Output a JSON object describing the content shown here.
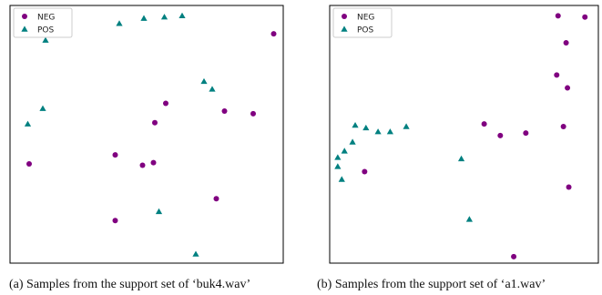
{
  "colors": {
    "neg": "#800080",
    "pos": "#008080"
  },
  "chart_data": [
    {
      "type": "scatter",
      "title": "",
      "xlabel": "",
      "ylabel": "",
      "xlim": [
        0,
        100
      ],
      "ylim": [
        0,
        100
      ],
      "grid": false,
      "legend": "top-left",
      "series": [
        {
          "name": "NEG",
          "marker": "circle",
          "points": [
            [
              96.5,
              89
            ],
            [
              57,
              62
            ],
            [
              78.5,
              59
            ],
            [
              89,
              58
            ],
            [
              53,
              54.5
            ],
            [
              7,
              38.5
            ],
            [
              38.5,
              42
            ],
            [
              48.5,
              38
            ],
            [
              52.5,
              39
            ],
            [
              75.5,
              25
            ],
            [
              38.5,
              16.5
            ]
          ]
        },
        {
          "name": "POS",
          "marker": "triangle",
          "points": [
            [
              13,
              86.5
            ],
            [
              40,
              93
            ],
            [
              49,
              95
            ],
            [
              56.5,
              95.5
            ],
            [
              63,
              96
            ],
            [
              71,
              70.5
            ],
            [
              74,
              67.5
            ],
            [
              12,
              60
            ],
            [
              6.5,
              54
            ],
            [
              54.5,
              20
            ],
            [
              68,
              3.5
            ]
          ]
        }
      ]
    },
    {
      "type": "scatter",
      "title": "",
      "xlabel": "",
      "ylabel": "",
      "xlim": [
        0,
        100
      ],
      "ylim": [
        0,
        100
      ],
      "grid": false,
      "legend": "top-left",
      "series": [
        {
          "name": "NEG",
          "marker": "circle",
          "points": [
            [
              85,
              96
            ],
            [
              95,
              95.5
            ],
            [
              88,
              85.5
            ],
            [
              84.5,
              73
            ],
            [
              88.5,
              68
            ],
            [
              57.5,
              54
            ],
            [
              63.5,
              49.5
            ],
            [
              73,
              50.5
            ],
            [
              87,
              53
            ],
            [
              13,
              35.5
            ],
            [
              89,
              29.5
            ],
            [
              68.5,
              2.5
            ]
          ]
        },
        {
          "name": "POS",
          "marker": "triangle",
          "points": [
            [
              9.5,
              53.5
            ],
            [
              13.5,
              52.5
            ],
            [
              18,
              51
            ],
            [
              22.5,
              51
            ],
            [
              28.5,
              53
            ],
            [
              8.5,
              47
            ],
            [
              5.5,
              43.5
            ],
            [
              3,
              41
            ],
            [
              3,
              37.5
            ],
            [
              4.5,
              32.5
            ],
            [
              49,
              40.5
            ],
            [
              52,
              17
            ]
          ]
        }
      ]
    }
  ],
  "captions": [
    "(a) Samples from the support set of ‘buk4.wav’",
    "(b) Samples from the support set of ‘a1.wav’"
  ]
}
